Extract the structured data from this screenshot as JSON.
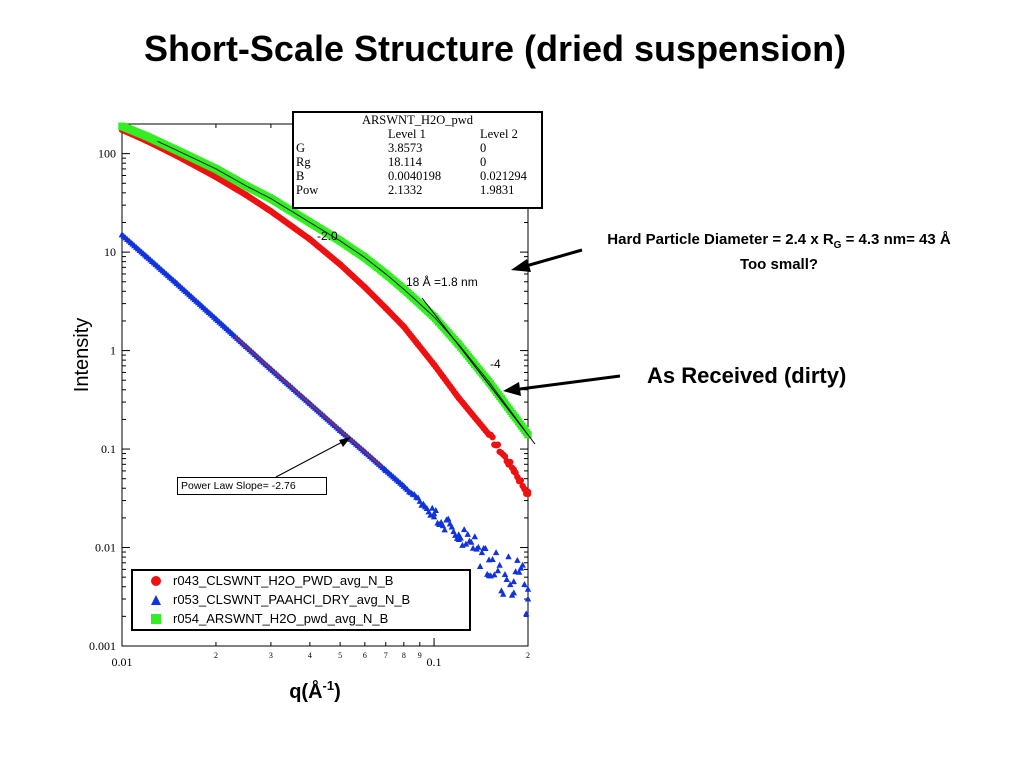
{
  "slide": {
    "title": "Short-Scale Structure (dried suspension)",
    "note_diameter_prefix": "Hard Particle Diameter = 2.4 x R",
    "note_diameter_sub": "G",
    "note_diameter_suffix": " = 4.3 nm= 43 Å",
    "note_too_small": "Too small?",
    "note_as_received": "As Received (dirty)"
  },
  "fit_table": {
    "title": "ARSWNT_H2O_pwd",
    "headers": [
      "",
      "Level 1",
      "Level 2"
    ],
    "rows": [
      [
        "G",
        "3.8573",
        "0"
      ],
      [
        "Rg",
        "18.114",
        "0"
      ],
      [
        "B",
        "0.0040198",
        "0.021294"
      ],
      [
        "Pow",
        "2.1332",
        "1.9831"
      ]
    ]
  },
  "annotations": {
    "slope_label": "Power Law Slope= -2.76",
    "slope_neg2": "-2.0",
    "slope_neg4": "-4",
    "rg_label": "18 Å =1.8 nm"
  },
  "colors": {
    "red": "#ee1111",
    "blue": "#1133dd",
    "green": "#33ee22",
    "fit_line": "#222222"
  },
  "chart_data": {
    "type": "scatter",
    "xscale": "log",
    "yscale": "log",
    "xlabel": "q(Å-1)",
    "ylabel": "Intensity",
    "xlim": [
      0.01,
      0.2
    ],
    "ylim": [
      0.001,
      200
    ],
    "x_tick_labels": [
      "0.01",
      "2",
      "3",
      "4",
      "5",
      "6",
      "7",
      "8",
      "9",
      "0.1",
      "2"
    ],
    "y_tick_labels": [
      "0.001",
      "0.01",
      "0.1",
      "1",
      "10",
      "100"
    ],
    "series": [
      {
        "name": "r043_CLSWNT_H2O_PWD_avg_N_B",
        "marker": "circle",
        "color": "#ee1111",
        "x": [
          0.01,
          0.012,
          0.015,
          0.02,
          0.025,
          0.03,
          0.04,
          0.05,
          0.06,
          0.07,
          0.08,
          0.1,
          0.12,
          0.15,
          0.18,
          0.2
        ],
        "y": [
          175,
          135,
          95,
          58,
          38,
          26,
          13.5,
          7.5,
          4.4,
          2.7,
          1.75,
          0.72,
          0.33,
          0.14,
          0.062,
          0.035
        ]
      },
      {
        "name": "r053_CLSWNT_PAAHCl_DRY_avg_N_B",
        "marker": "triangle",
        "color": "#1133dd",
        "x": [
          0.01,
          0.012,
          0.015,
          0.02,
          0.025,
          0.03,
          0.04,
          0.05,
          0.06,
          0.07,
          0.08,
          0.1,
          0.12,
          0.15,
          0.18,
          0.2
        ],
        "y": [
          15,
          9.0,
          4.8,
          2.1,
          1.1,
          0.65,
          0.29,
          0.155,
          0.094,
          0.061,
          0.042,
          0.022,
          0.0135,
          0.0075,
          0.0045,
          0.003
        ]
      },
      {
        "name": "r054_ARSWNT_H2O_pwd_avg_N_B",
        "marker": "square",
        "color": "#33ee22",
        "x": [
          0.01,
          0.012,
          0.015,
          0.02,
          0.025,
          0.03,
          0.04,
          0.05,
          0.06,
          0.07,
          0.08,
          0.1,
          0.12,
          0.15,
          0.18,
          0.2
        ],
        "y": [
          190,
          150,
          108,
          70,
          47,
          35,
          20,
          13,
          8.8,
          6.0,
          4.2,
          2.2,
          1.15,
          0.48,
          0.22,
          0.14
        ]
      }
    ]
  }
}
